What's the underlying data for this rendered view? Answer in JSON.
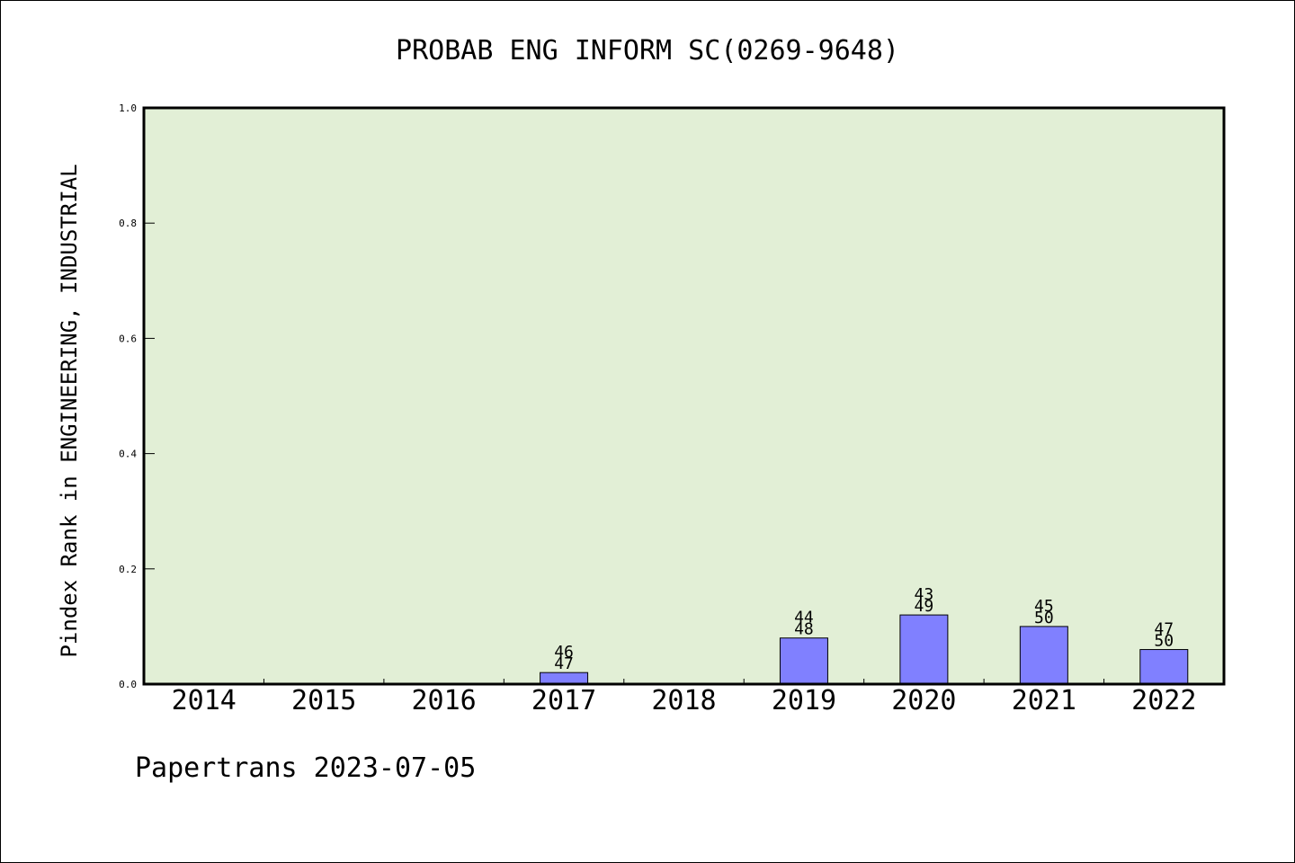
{
  "chart_data": {
    "type": "bar",
    "title": "PROBAB ENG INFORM SC(0269-9648)",
    "ylabel": "Pindex Rank in ENGINEERING, INDUSTRIAL",
    "xlabel": "",
    "ylim": [
      0,
      1.0
    ],
    "yticks": [
      "0.0",
      "0.2",
      "0.4",
      "0.6",
      "0.8",
      "1.0"
    ],
    "grid": false,
    "categories": [
      "2014",
      "2015",
      "2016",
      "2017",
      "2018",
      "2019",
      "2020",
      "2021",
      "2022"
    ],
    "values": [
      null,
      null,
      null,
      0.02,
      null,
      0.08,
      0.12,
      0.1,
      0.06
    ],
    "bar_labels": [
      null,
      null,
      null,
      [
        "46",
        "47"
      ],
      null,
      [
        "44",
        "48"
      ],
      [
        "43",
        "49"
      ],
      [
        "45",
        "50"
      ],
      [
        "47",
        "50"
      ]
    ],
    "colors": {
      "plot_background": "#e2efd6",
      "bar_fill": "#8080ff",
      "bar_stroke": "#000000"
    }
  },
  "footer": "Papertrans 2023-07-05"
}
